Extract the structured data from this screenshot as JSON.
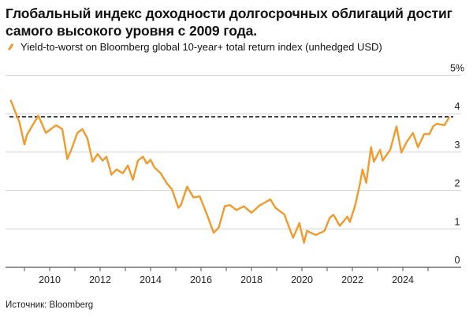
{
  "chart_data": {
    "type": "line",
    "title": "Глобальный индекс доходности долгосрочных облигаций достиг самого высокого уровня с 2009 года.",
    "legend": [
      "Yield-to-worst on Bloomberg global 10-year+ total return index (unhedged USD)"
    ],
    "legend_placement": "top-left",
    "source": "Источник: Bloomberg",
    "ylim": [
      0,
      5
    ],
    "y_ticks": [
      "0",
      "1",
      "2",
      "3",
      "4",
      "5%"
    ],
    "y_tick_values": [
      0,
      1,
      2,
      3,
      4,
      5
    ],
    "xlim": [
      2008.2,
      2026.0
    ],
    "x_ticks": [
      "2010",
      "2012",
      "2014",
      "2016",
      "2018",
      "2020",
      "2022",
      "2024"
    ],
    "x_tick_values": [
      2010,
      2012,
      2014,
      2016,
      2018,
      2020,
      2022,
      2024
    ],
    "grid": "horizontal",
    "reference_line": {
      "value": 3.92,
      "style": "dashed",
      "color": "#111111"
    },
    "series": [
      {
        "color": "#f39a2c",
        "x": [
          2008.45,
          2008.8,
          2009.0,
          2009.1,
          2009.55,
          2009.85,
          2010.25,
          2010.5,
          2010.7,
          2010.85,
          2011.1,
          2011.3,
          2011.5,
          2011.7,
          2011.9,
          2012.1,
          2012.25,
          2012.45,
          2012.65,
          2012.9,
          2013.1,
          2013.3,
          2013.5,
          2013.7,
          2013.85,
          2014.0,
          2014.15,
          2014.4,
          2014.65,
          2014.85,
          2015.1,
          2015.2,
          2015.45,
          2015.7,
          2015.95,
          2016.25,
          2016.5,
          2016.7,
          2016.94,
          2017.15,
          2017.4,
          2017.7,
          2018.0,
          2018.3,
          2018.75,
          2018.95,
          2019.3,
          2019.65,
          2019.9,
          2020.08,
          2020.2,
          2020.55,
          2020.9,
          2021.1,
          2021.25,
          2021.5,
          2021.8,
          2021.9,
          2022.1,
          2022.3,
          2022.4,
          2022.55,
          2022.74,
          2022.85,
          2023.1,
          2023.2,
          2023.5,
          2023.75,
          2023.94,
          2024.15,
          2024.4,
          2024.6,
          2024.85,
          2025.05,
          2025.2,
          2025.35,
          2025.65,
          2025.85
        ],
        "y": [
          4.36,
          3.78,
          3.2,
          3.45,
          3.95,
          3.5,
          3.7,
          3.6,
          2.82,
          3.05,
          3.5,
          3.6,
          3.35,
          2.75,
          2.95,
          2.78,
          2.88,
          2.41,
          2.55,
          2.45,
          2.65,
          2.28,
          2.78,
          2.88,
          2.7,
          2.8,
          2.6,
          2.45,
          2.18,
          2.03,
          1.55,
          1.62,
          2.1,
          1.82,
          1.85,
          1.35,
          0.9,
          1.03,
          1.59,
          1.62,
          1.49,
          1.59,
          1.42,
          1.6,
          1.77,
          1.55,
          1.38,
          0.77,
          1.15,
          0.64,
          0.95,
          0.84,
          0.95,
          1.29,
          1.37,
          1.08,
          1.32,
          1.18,
          1.59,
          2.17,
          2.55,
          2.2,
          3.13,
          2.75,
          3.06,
          2.78,
          3.06,
          3.67,
          2.99,
          3.26,
          3.5,
          3.13,
          3.47,
          3.47,
          3.67,
          3.74,
          3.7,
          3.92
        ]
      }
    ]
  }
}
